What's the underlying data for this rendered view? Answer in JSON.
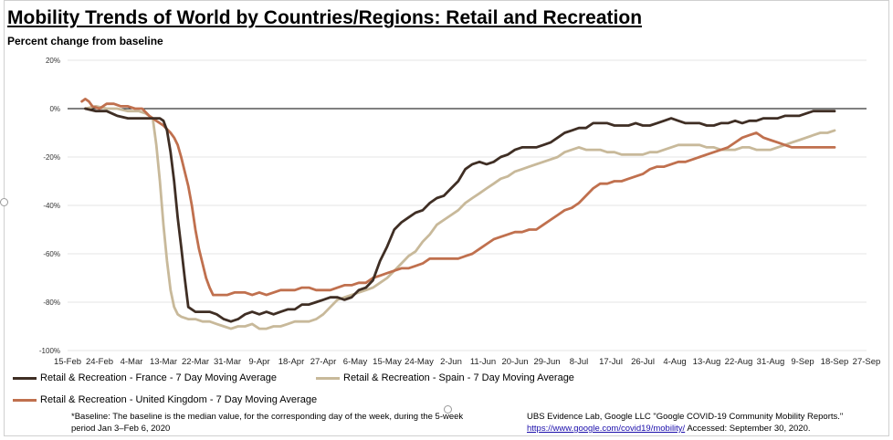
{
  "header": {
    "title": "Mobility Trends of World by Countries/Regions: Retail and Recreation",
    "subtitle": "Percent change from baseline"
  },
  "colors": {
    "france": "#3f2e24",
    "spain": "#c8b99a",
    "uk": "#c0704e"
  },
  "chart_data": {
    "type": "line",
    "title": "Mobility Trends of World by Countries/Regions: Retail and Recreation",
    "ylabel": "Percent change from baseline",
    "ylim": [
      -100,
      20
    ],
    "ytick_values": [
      20,
      0,
      -20,
      -40,
      -60,
      -80,
      -100
    ],
    "ytick_labels": [
      "20%",
      "0%",
      "-20%",
      "-40%",
      "-60%",
      "-80%",
      "-100%"
    ],
    "xlim_days": [
      0,
      225
    ],
    "xtick_labels": [
      "15-Feb",
      "24-Feb",
      "4-Mar",
      "13-Mar",
      "22-Mar",
      "31-Mar",
      "9-Apr",
      "18-Apr",
      "27-Apr",
      "6-May",
      "15-May",
      "24-May",
      "2-Jun",
      "11-Jun",
      "20-Jun",
      "29-Jun",
      "8-Jul",
      "17-Jul",
      "26-Jul",
      "4-Aug",
      "13-Aug",
      "22-Aug",
      "31-Aug",
      "9-Sep",
      "18-Sep",
      "27-Sep"
    ],
    "x_note": "x values are days since 15-Feb-2020",
    "series": [
      {
        "name": "Retail & Recreation - France - 7 Day Moving Average",
        "color_key": "france",
        "x": [
          5,
          8,
          11,
          14,
          17,
          20,
          23,
          26,
          27,
          28,
          29,
          30,
          31,
          32,
          33,
          34,
          36,
          38,
          40,
          42,
          44,
          46,
          48,
          50,
          52,
          54,
          56,
          58,
          60,
          62,
          64,
          66,
          68,
          70,
          72,
          74,
          76,
          78,
          80,
          82,
          84,
          86,
          88,
          90,
          92,
          94,
          96,
          98,
          100,
          102,
          104,
          106,
          108,
          110,
          112,
          114,
          116,
          118,
          120,
          122,
          124,
          126,
          128,
          130,
          132,
          134,
          136,
          138,
          140,
          142,
          144,
          146,
          148,
          150,
          152,
          154,
          156,
          158,
          160,
          162,
          164,
          166,
          168,
          170,
          172,
          174,
          176,
          178,
          180,
          182,
          184,
          186,
          188,
          190,
          192,
          194,
          196,
          198,
          200,
          202,
          204,
          206,
          208,
          210,
          212,
          213,
          214,
          216
        ],
        "values": [
          0,
          -1,
          -1,
          -3,
          -4,
          -4,
          -4,
          -4,
          -5,
          -9,
          -18,
          -30,
          -45,
          -57,
          -70,
          -82,
          -84,
          -84,
          -84,
          -85,
          -87,
          -88,
          -87,
          -85,
          -84,
          -85,
          -84,
          -85,
          -84,
          -83,
          -83,
          -81,
          -81,
          -80,
          -79,
          -78,
          -78,
          -79,
          -78,
          -75,
          -74,
          -71,
          -63,
          -57,
          -50,
          -47,
          -45,
          -43,
          -42,
          -39,
          -37,
          -36,
          -33,
          -30,
          -25,
          -23,
          -22,
          -23,
          -22,
          -20,
          -19,
          -17,
          -16,
          -16,
          -16,
          -15,
          -14,
          -12,
          -10,
          -9,
          -8,
          -8,
          -6,
          -6,
          -6,
          -7,
          -7,
          -7,
          -6,
          -7,
          -7,
          -6,
          -5,
          -4,
          -5,
          -6,
          -6,
          -6,
          -7,
          -7,
          -6,
          -6,
          -5,
          -6,
          -5,
          -5,
          -4,
          -4,
          -4,
          -3,
          -3,
          -3,
          -2,
          -1,
          -1,
          -1,
          -1,
          -1
        ]
      },
      {
        "name": "Retail & Recreation - Spain - 7 Day Moving Average",
        "color_key": "spain",
        "x": [
          5,
          8,
          11,
          14,
          17,
          20,
          22,
          24,
          25,
          26,
          27,
          28,
          29,
          30,
          31,
          32,
          34,
          36,
          38,
          40,
          42,
          44,
          46,
          48,
          50,
          52,
          54,
          56,
          58,
          60,
          62,
          64,
          66,
          68,
          70,
          72,
          74,
          76,
          78,
          80,
          82,
          84,
          86,
          88,
          90,
          92,
          94,
          96,
          98,
          100,
          102,
          104,
          106,
          108,
          110,
          112,
          114,
          116,
          118,
          120,
          122,
          124,
          126,
          128,
          130,
          132,
          134,
          136,
          138,
          140,
          142,
          144,
          146,
          148,
          150,
          152,
          154,
          156,
          158,
          160,
          162,
          164,
          166,
          168,
          170,
          172,
          174,
          176,
          178,
          180,
          182,
          184,
          186,
          188,
          190,
          192,
          194,
          196,
          198,
          200,
          202,
          204,
          206,
          208,
          210,
          212,
          214,
          216
        ],
        "values": [
          0,
          1,
          0,
          0,
          -1,
          -1,
          -2,
          -4,
          -15,
          -30,
          -48,
          -63,
          -75,
          -82,
          -85,
          -86,
          -87,
          -87,
          -88,
          -88,
          -89,
          -90,
          -91,
          -90,
          -90,
          -89,
          -91,
          -91,
          -90,
          -90,
          -89,
          -88,
          -88,
          -88,
          -87,
          -85,
          -82,
          -79,
          -78,
          -77,
          -76,
          -75,
          -74,
          -72,
          -70,
          -67,
          -64,
          -61,
          -59,
          -55,
          -52,
          -48,
          -46,
          -44,
          -42,
          -39,
          -37,
          -35,
          -33,
          -31,
          -29,
          -28,
          -26,
          -25,
          -24,
          -23,
          -22,
          -21,
          -20,
          -18,
          -17,
          -16,
          -17,
          -17,
          -17,
          -18,
          -18,
          -19,
          -19,
          -19,
          -19,
          -18,
          -18,
          -17,
          -16,
          -15,
          -15,
          -15,
          -15,
          -16,
          -16,
          -17,
          -17,
          -17,
          -16,
          -16,
          -17,
          -17,
          -17,
          -16,
          -15,
          -14,
          -13,
          -12,
          -11,
          -10,
          -10,
          -9
        ]
      },
      {
        "name": "Retail & Recreation - United Kingdom - 7 Day Moving Average",
        "color_key": "uk",
        "x": [
          4,
          5,
          6,
          7,
          9,
          11,
          13,
          15,
          17,
          19,
          21,
          23,
          25,
          27,
          29,
          30,
          31,
          32,
          33,
          34,
          35,
          36,
          37,
          38,
          39,
          40,
          41,
          42,
          43,
          44,
          45,
          47,
          50,
          52,
          54,
          56,
          58,
          60,
          62,
          64,
          66,
          68,
          70,
          72,
          74,
          76,
          78,
          80,
          82,
          84,
          86,
          88,
          90,
          92,
          94,
          96,
          98,
          100,
          102,
          104,
          106,
          108,
          110,
          112,
          114,
          116,
          118,
          120,
          122,
          124,
          126,
          128,
          130,
          132,
          134,
          136,
          138,
          140,
          142,
          144,
          146,
          148,
          150,
          152,
          154,
          156,
          158,
          160,
          162,
          164,
          166,
          168,
          170,
          172,
          174,
          176,
          178,
          180,
          182,
          184,
          186,
          188,
          190,
          192,
          194,
          196,
          198,
          200,
          202,
          204,
          205,
          206,
          208,
          210,
          212,
          214,
          216
        ],
        "values": [
          3,
          4,
          3,
          1,
          0,
          2,
          2,
          1,
          1,
          0,
          0,
          -3,
          -5,
          -7,
          -10,
          -12,
          -15,
          -20,
          -26,
          -32,
          -40,
          -50,
          -58,
          -64,
          -70,
          -74,
          -77,
          -77,
          -77,
          -77,
          -77,
          -76,
          -76,
          -77,
          -76,
          -77,
          -76,
          -75,
          -75,
          -75,
          -74,
          -74,
          -75,
          -75,
          -75,
          -74,
          -73,
          -73,
          -72,
          -72,
          -70,
          -69,
          -68,
          -67,
          -66,
          -66,
          -65,
          -64,
          -62,
          -62,
          -62,
          -62,
          -62,
          -61,
          -60,
          -58,
          -56,
          -54,
          -53,
          -52,
          -51,
          -51,
          -50,
          -50,
          -48,
          -46,
          -44,
          -42,
          -41,
          -39,
          -36,
          -33,
          -31,
          -31,
          -30,
          -30,
          -29,
          -28,
          -27,
          -25,
          -24,
          -24,
          -23,
          -22,
          -22,
          -21,
          -20,
          -19,
          -18,
          -17,
          -16,
          -14,
          -12,
          -11,
          -10,
          -12,
          -13,
          -14,
          -15,
          -16,
          -16,
          -16,
          -16,
          -16,
          -16,
          -16,
          -16
        ]
      }
    ]
  },
  "legend": {
    "france": "Retail & Recreation - France - 7 Day Moving Average",
    "spain": "Retail & Recreation - Spain - 7 Day Moving Average",
    "uk": "Retail & Recreation - United Kingdom - 7 Day Moving Average"
  },
  "footnote": {
    "baseline": "*Baseline: The baseline is the median value, for the corresponding day of the week, during the 5-week period Jan 3–Feb 6, 2020",
    "source_line": "UBS Evidence Lab, Google LLC \"Google COVID-19 Community Mobility Reports.\"",
    "source_url": "https://www.google.com/covid19/mobility/",
    "accessed": " Accessed: September 30, 2020."
  }
}
